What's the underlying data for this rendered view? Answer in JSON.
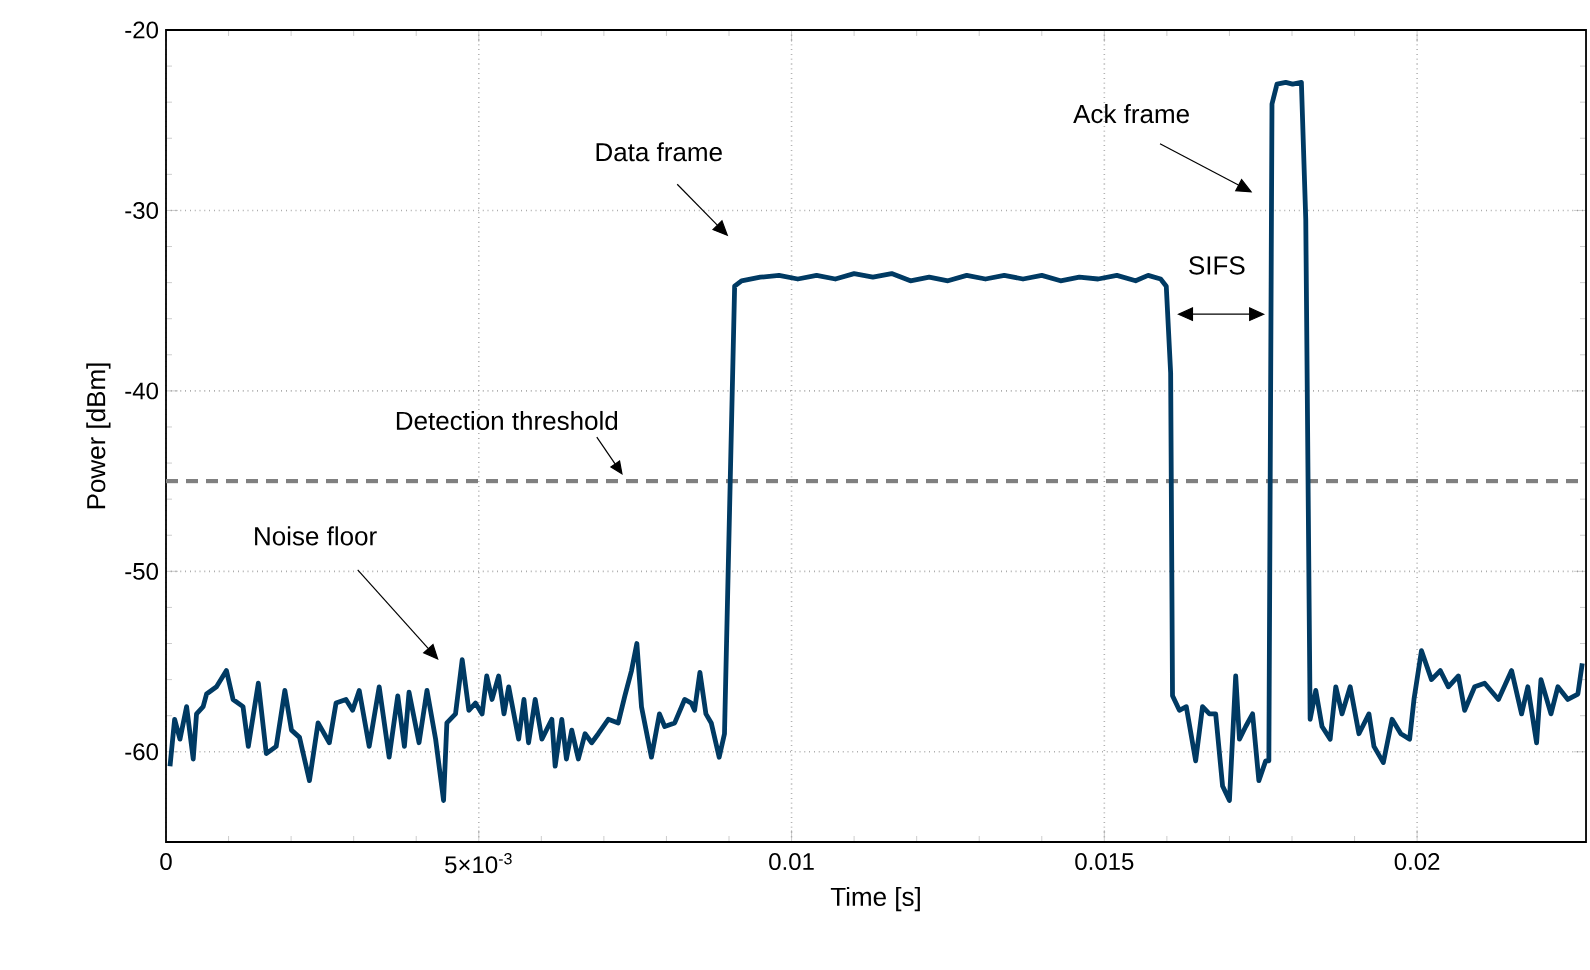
{
  "chart_data": {
    "type": "line",
    "xlabel": "Time [s]",
    "ylabel": "Power [dBm]",
    "xlim": [
      0,
      0.0227
    ],
    "ylim": [
      -65,
      -20
    ],
    "xticks": [
      0,
      {
        "value": 0.005,
        "label": "5×10$^{-3}$"
      },
      0.01,
      0.015,
      0.02
    ],
    "yticks": [
      -60,
      -50,
      -40,
      -30,
      -20
    ],
    "grid": true,
    "marker": "none",
    "line_style": "solid",
    "series": [
      {
        "color": "#003a63",
        "x": [
          6.4e-05,
          0.000138,
          0.000223,
          0.000329,
          0.000435,
          0.000488,
          0.000594,
          0.000648,
          0.000807,
          0.000966,
          0.001072,
          0.001231,
          0.001316,
          0.001476,
          0.001603,
          0.001762,
          0.0019,
          0.002006,
          0.002134,
          0.002293,
          0.002431,
          0.002611,
          0.002718,
          0.002877,
          0.002983,
          0.003089,
          0.003248,
          0.003408,
          0.003567,
          0.003705,
          0.003811,
          0.003885,
          0.004045,
          0.004172,
          0.00431,
          0.004437,
          0.00449,
          0.004628,
          0.004735,
          0.004841,
          0.004947,
          0.005053,
          0.005127,
          0.005212,
          0.005318,
          0.005403,
          0.005478,
          0.005637,
          0.005722,
          0.005796,
          0.005902,
          0.006009,
          0.006168,
          0.006221,
          0.006327,
          0.006401,
          0.006486,
          0.006592,
          0.006699,
          0.006805,
          0.006911,
          0.00707,
          0.007229,
          0.007335,
          0.007442,
          0.007527,
          0.007601,
          0.00776,
          0.007888,
          0.007972,
          0.008132,
          0.008291,
          0.008397,
          0.00845,
          0.008535,
          0.008631,
          0.008716,
          0.008843,
          0.008928,
          0.00909,
          0.0092,
          0.0095,
          0.0098,
          0.0101,
          0.0104,
          0.0107,
          0.011,
          0.0113,
          0.0116,
          0.0119,
          0.0122,
          0.0125,
          0.0128,
          0.0131,
          0.0134,
          0.0137,
          0.014,
          0.0143,
          0.0146,
          0.0149,
          0.0152,
          0.0155,
          0.0157,
          0.0159,
          0.01599,
          0.01606,
          0.01609,
          0.0162,
          0.01631,
          0.01646,
          0.01657,
          0.01668,
          0.01678,
          0.01689,
          0.017,
          0.0171,
          0.01716,
          0.01726,
          0.01737,
          0.01747,
          0.01758,
          0.01763,
          0.01768,
          0.01776,
          0.0179,
          0.01801,
          0.01815,
          0.01822,
          0.01829,
          0.01838,
          0.01848,
          0.01861,
          0.0187,
          0.0188,
          0.01893,
          0.01907,
          0.01923,
          0.01931,
          0.01946,
          0.0196,
          0.01974,
          0.01988,
          0.01995,
          0.02007,
          0.02023,
          0.02037,
          0.0205,
          0.02066,
          0.02076,
          0.02092,
          0.02108,
          0.0213,
          0.02151,
          0.02167,
          0.02177,
          0.02191,
          0.02198,
          0.02214,
          0.02225,
          0.02241,
          0.02257,
          0.02264
        ],
        "values": [
          -60.8,
          -58.2,
          -59.3,
          -57.5,
          -60.4,
          -57.9,
          -57.5,
          -56.8,
          -56.4,
          -55.5,
          -57.1,
          -57.5,
          -59.7,
          -56.2,
          -60.1,
          -59.7,
          -56.6,
          -58.8,
          -59.2,
          -61.6,
          -58.4,
          -59.5,
          -57.3,
          -57.1,
          -57.7,
          -56.6,
          -59.7,
          -56.4,
          -60.3,
          -56.9,
          -59.7,
          -56.7,
          -59.5,
          -56.6,
          -59.3,
          -62.7,
          -58.4,
          -57.9,
          -54.9,
          -57.7,
          -57.3,
          -57.9,
          -55.8,
          -57.1,
          -55.8,
          -57.9,
          -56.4,
          -59.3,
          -57.1,
          -59.5,
          -57.1,
          -59.3,
          -58.2,
          -60.8,
          -58.2,
          -60.4,
          -58.8,
          -60.4,
          -59.0,
          -59.5,
          -59.0,
          -58.2,
          -58.4,
          -56.9,
          -55.5,
          -54.0,
          -57.5,
          -60.3,
          -57.9,
          -58.6,
          -58.4,
          -57.1,
          -57.3,
          -57.7,
          -55.6,
          -57.9,
          -58.4,
          -60.3,
          -59.0,
          -34.2,
          -33.9,
          -33.7,
          -33.6,
          -33.8,
          -33.6,
          -33.8,
          -33.5,
          -33.7,
          -33.5,
          -33.9,
          -33.7,
          -33.9,
          -33.6,
          -33.8,
          -33.6,
          -33.8,
          -33.6,
          -33.9,
          -33.7,
          -33.8,
          -33.6,
          -33.9,
          -33.6,
          -33.8,
          -34.2,
          -39.0,
          -56.9,
          -57.7,
          -57.5,
          -60.5,
          -57.5,
          -57.9,
          -57.9,
          -61.9,
          -62.7,
          -55.8,
          -59.3,
          -58.6,
          -57.9,
          -61.6,
          -60.5,
          -60.5,
          -24.1,
          -23.0,
          -22.9,
          -23.0,
          -22.9,
          -30.5,
          -58.2,
          -56.6,
          -58.6,
          -59.3,
          -56.4,
          -57.9,
          -56.4,
          -59.0,
          -57.9,
          -59.7,
          -60.6,
          -58.2,
          -59.0,
          -59.3,
          -57.1,
          -54.4,
          -56.0,
          -55.5,
          -56.4,
          -55.8,
          -57.7,
          -56.4,
          -56.2,
          -57.1,
          -55.5,
          -57.9,
          -56.4,
          -59.5,
          -56.0,
          -57.9,
          -56.4,
          -57.1,
          -56.8,
          -55.1
        ]
      }
    ],
    "ref_lines": [
      {
        "axis": "y",
        "value": -45,
        "label": "Detection threshold",
        "color": "#808080",
        "line_style": "dashed"
      }
    ],
    "annotations": [
      "Data frame",
      "Ack frame",
      "SIFS",
      "Noise floor"
    ]
  }
}
